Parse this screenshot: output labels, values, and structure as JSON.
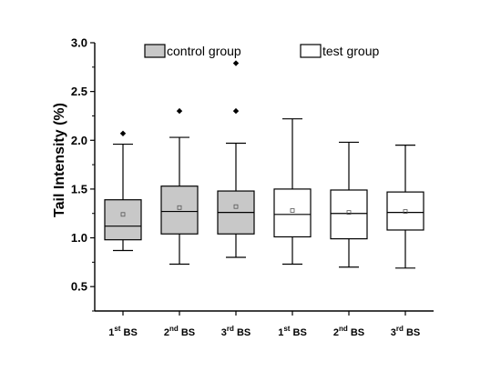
{
  "chart_data": {
    "type": "box",
    "ylabel": "Tail Intensity (%)",
    "xlabel": "",
    "ylim": [
      0.25,
      3.0
    ],
    "yticks": [
      "0.5",
      "1.0",
      "1.5",
      "2.0",
      "2.5",
      "3.0"
    ],
    "legend_position": "top",
    "categories": [
      {
        "num": "1",
        "sup": "st",
        "suffix": " BS"
      },
      {
        "num": "2",
        "sup": "nd",
        "suffix": " BS"
      },
      {
        "num": "3",
        "sup": "rd",
        "suffix": " BS"
      },
      {
        "num": "1",
        "sup": "st",
        "suffix": " BS"
      },
      {
        "num": "2",
        "sup": "nd",
        "suffix": " BS"
      },
      {
        "num": "3",
        "sup": "rd",
        "suffix": " BS"
      }
    ],
    "series": [
      {
        "name": "control group",
        "color": "#c8c8c8",
        "category_indices": [
          0,
          1,
          2
        ]
      },
      {
        "name": "test group",
        "color": "#ffffff",
        "category_indices": [
          3,
          4,
          5
        ]
      }
    ],
    "boxes": [
      {
        "whisker_low": 0.87,
        "q1": 0.98,
        "median": 1.12,
        "q3": 1.39,
        "whisker_high": 1.96,
        "mean": 1.24,
        "outliers": [
          2.07
        ]
      },
      {
        "whisker_low": 0.73,
        "q1": 1.04,
        "median": 1.27,
        "q3": 1.53,
        "whisker_high": 2.03,
        "mean": 1.31,
        "outliers": [
          2.3
        ]
      },
      {
        "whisker_low": 0.8,
        "q1": 1.04,
        "median": 1.26,
        "q3": 1.48,
        "whisker_high": 1.97,
        "mean": 1.32,
        "outliers": [
          2.3,
          2.79
        ]
      },
      {
        "whisker_low": 0.73,
        "q1": 1.01,
        "median": 1.24,
        "q3": 1.5,
        "whisker_high": 2.22,
        "mean": 1.28,
        "outliers": []
      },
      {
        "whisker_low": 0.7,
        "q1": 0.99,
        "median": 1.25,
        "q3": 1.49,
        "whisker_high": 1.98,
        "mean": 1.26,
        "outliers": []
      },
      {
        "whisker_low": 0.69,
        "q1": 1.08,
        "median": 1.26,
        "q3": 1.47,
        "whisker_high": 1.95,
        "mean": 1.27,
        "outliers": []
      }
    ]
  }
}
